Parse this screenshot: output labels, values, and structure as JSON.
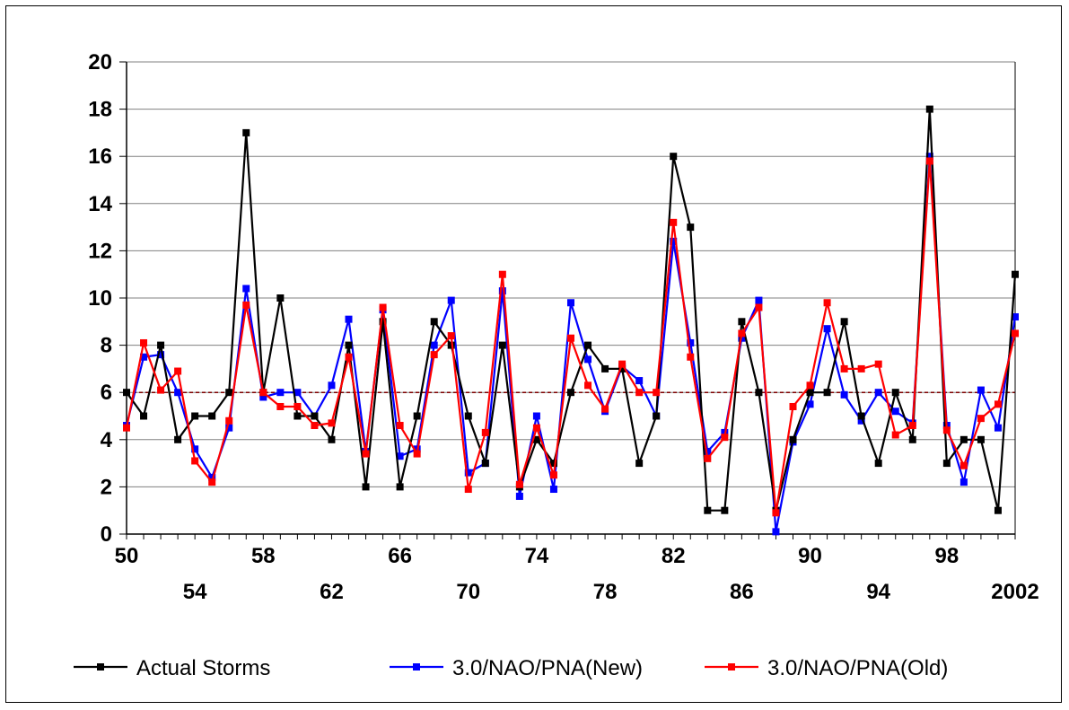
{
  "chart_data": {
    "type": "line",
    "title": "",
    "xlabel": "",
    "ylabel": "",
    "x": [
      1950,
      1951,
      1952,
      1953,
      1954,
      1955,
      1956,
      1957,
      1958,
      1959,
      1960,
      1961,
      1962,
      1963,
      1964,
      1965,
      1966,
      1967,
      1968,
      1969,
      1970,
      1971,
      1972,
      1973,
      1974,
      1975,
      1976,
      1977,
      1978,
      1979,
      1980,
      1981,
      1982,
      1983,
      1984,
      1985,
      1986,
      1987,
      1988,
      1989,
      1990,
      1991,
      1992,
      1993,
      1994,
      1995,
      1996,
      1997,
      1998,
      1999,
      2000,
      2001,
      2002
    ],
    "xlim": [
      1950,
      2002
    ],
    "ylim": [
      0,
      20
    ],
    "y_ticks": [
      "0",
      "2",
      "4",
      "6",
      "8",
      "10",
      "12",
      "14",
      "16",
      "18",
      "20"
    ],
    "x_ticks_upper": [
      {
        "year": 1950,
        "label": "50"
      },
      {
        "year": 1958,
        "label": "58"
      },
      {
        "year": 1966,
        "label": "66"
      },
      {
        "year": 1974,
        "label": "74"
      },
      {
        "year": 1982,
        "label": "82"
      },
      {
        "year": 1990,
        "label": "90"
      },
      {
        "year": 1998,
        "label": "98"
      }
    ],
    "x_ticks_lower": [
      {
        "year": 1954,
        "label": "54"
      },
      {
        "year": 1962,
        "label": "62"
      },
      {
        "year": 1970,
        "label": "70"
      },
      {
        "year": 1978,
        "label": "78"
      },
      {
        "year": 1986,
        "label": "86"
      },
      {
        "year": 1994,
        "label": "94"
      },
      {
        "year": 2002,
        "label": "2002"
      }
    ],
    "grid": true,
    "legend_position": "bottom",
    "reference_line": {
      "value": 6,
      "color": "#7f0000",
      "style": "dashed"
    },
    "series": [
      {
        "name": "Actual Storms",
        "color": "#000000",
        "values": [
          6,
          5,
          8,
          4,
          5,
          5,
          6,
          17,
          6,
          10,
          5,
          5,
          4,
          8,
          2,
          9,
          2,
          5,
          9,
          8,
          5,
          3,
          8,
          2,
          4,
          3,
          6,
          8,
          7,
          7,
          3,
          5,
          16,
          13,
          1,
          1,
          9,
          6,
          1,
          4,
          6,
          6,
          9,
          5,
          3,
          6,
          4,
          18,
          3,
          4,
          4,
          1,
          11
        ]
      },
      {
        "name": "3.0/NAO/PNA(New)",
        "color": "#0000ff",
        "values": [
          4.6,
          7.5,
          7.6,
          6.0,
          3.6,
          2.4,
          4.5,
          10.4,
          5.8,
          6.0,
          6.0,
          5.0,
          6.3,
          9.1,
          3.5,
          9.5,
          3.3,
          3.6,
          8.0,
          9.9,
          2.6,
          3.0,
          10.3,
          1.6,
          5.0,
          1.9,
          9.8,
          7.4,
          5.2,
          7.1,
          6.5,
          5.0,
          12.4,
          8.1,
          3.5,
          4.3,
          8.3,
          9.9,
          0.1,
          3.9,
          5.5,
          8.7,
          5.9,
          4.8,
          6.0,
          5.2,
          4.7,
          16.0,
          4.6,
          2.2,
          6.1,
          4.5,
          9.2
        ]
      },
      {
        "name": "3.0/NAO/PNA(Old)",
        "color": "#ff0000",
        "values": [
          4.5,
          8.1,
          6.1,
          6.9,
          3.1,
          2.2,
          4.8,
          9.7,
          6.0,
          5.4,
          5.4,
          4.6,
          4.7,
          7.5,
          3.4,
          9.6,
          4.6,
          3.4,
          7.6,
          8.4,
          1.9,
          4.3,
          11.0,
          2.1,
          4.5,
          2.5,
          8.3,
          6.3,
          5.3,
          7.2,
          6.0,
          6.0,
          13.2,
          7.5,
          3.2,
          4.1,
          8.5,
          9.6,
          0.9,
          5.4,
          6.3,
          9.8,
          7.0,
          7.0,
          7.2,
          4.2,
          4.6,
          15.8,
          4.4,
          2.9,
          4.9,
          5.5,
          8.5
        ]
      }
    ]
  }
}
